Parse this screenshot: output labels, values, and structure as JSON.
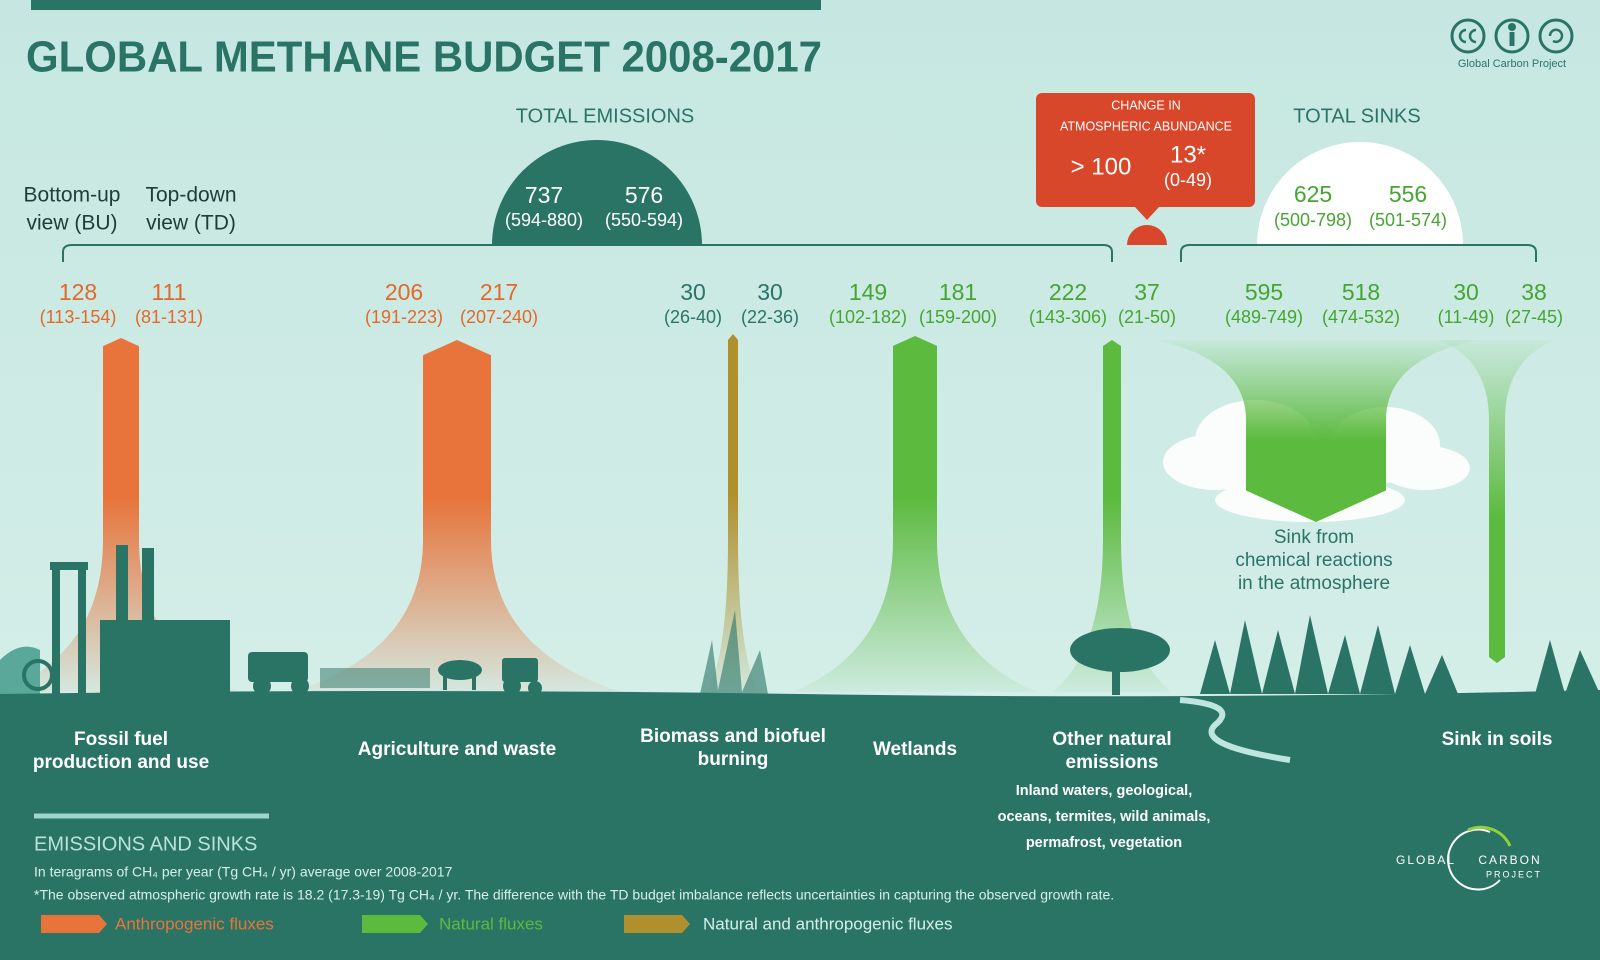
{
  "header": {
    "title": "GLOBAL METHANE BUDGET 2008-2017",
    "credit": "Global Carbon Project"
  },
  "view_labels": {
    "bottom_up": [
      "Bottom-up",
      "view (BU)"
    ],
    "top_down": [
      "Top-down",
      "view  (TD)"
    ]
  },
  "total_emissions": {
    "label": "TOTAL EMISSIONS",
    "bu": "737",
    "bu_range": "(594-880)",
    "td": "576",
    "td_range": "(550-594)"
  },
  "change": {
    "label": [
      "CHANGE IN",
      "ATMOSPHERIC ABUNDANCE"
    ],
    "bu": "> 100",
    "td": "13*",
    "td_range": "(0-49)"
  },
  "total_sinks": {
    "label": "TOTAL SINKS",
    "bu": "625",
    "bu_range": "(500-798)",
    "td": "556",
    "td_range": "(501-574)"
  },
  "fluxes": [
    {
      "name": [
        "Fossil fuel",
        "production and use"
      ],
      "bu": "128",
      "bu_range": "(113-154)",
      "td": "111",
      "td_range": "(81-131)",
      "color": "#e8743b",
      "text_color": "#e2682c",
      "direction": "up"
    },
    {
      "name": [
        "Agriculture and waste"
      ],
      "bu": "206",
      "bu_range": "(191-223)",
      "td": "217",
      "td_range": "(207-240)",
      "color": "#e8743b",
      "text_color": "#e2682c",
      "direction": "up"
    },
    {
      "name": [
        "Biomass and biofuel",
        "burning"
      ],
      "bu": "30",
      "bu_range": "(26-40)",
      "td": "30",
      "td_range": "(22-36)",
      "color": "#b0902c",
      "text_color": "#2a7466",
      "direction": "up"
    },
    {
      "name": [
        "Wetlands"
      ],
      "bu": "149",
      "bu_range": "(102-182)",
      "td": "181",
      "td_range": "(159-200)",
      "color": "#5cba3e",
      "text_color": "#46a532",
      "direction": "up"
    },
    {
      "name": [
        "Other natural",
        "emissions"
      ],
      "detail": [
        "Inland waters, geological,",
        "oceans, termites, wild animals,",
        "permafrost, vegetation"
      ],
      "bu": "222",
      "bu_range": "(143-306)",
      "td": "37",
      "td_range": "(21-50)",
      "color": "#5cba3e",
      "text_color": "#46a532",
      "direction": "up"
    },
    {
      "name": [
        "Sink from",
        "chemical reactions",
        "in the atmosphere"
      ],
      "bu": "595",
      "bu_range": "(489-749)",
      "td": "518",
      "td_range": "(474-532)",
      "color": "#5cba3e",
      "text_color": "#46a532",
      "direction": "down"
    },
    {
      "name": [
        "Sink in soils"
      ],
      "bu": "30",
      "bu_range": "(11-49)",
      "td": "38",
      "td_range": "(27-45)",
      "color": "#5cba3e",
      "text_color": "#46a532",
      "direction": "down"
    }
  ],
  "footer": {
    "heading": "EMISSIONS AND SINKS",
    "units": "In teragrams of CH₄ per year (Tg CH₄ / yr) average over 2008-2017",
    "note": "*The observed atmospheric growth rate is 18.2 (17.3-19) Tg CH₄ / yr. The difference with the TD budget imbalance reflects uncertainties in capturing the observed growth rate.",
    "legend": [
      {
        "label": "Anthropogenic fluxes",
        "color": "#e8743b"
      },
      {
        "label": "Natural fluxes",
        "color": "#5cba3e"
      },
      {
        "label": "Natural and anthropogenic  fluxes",
        "color": "#b0902c"
      }
    ],
    "logo": [
      "GLOBAL",
      "CARBON",
      "PROJECT"
    ]
  }
}
